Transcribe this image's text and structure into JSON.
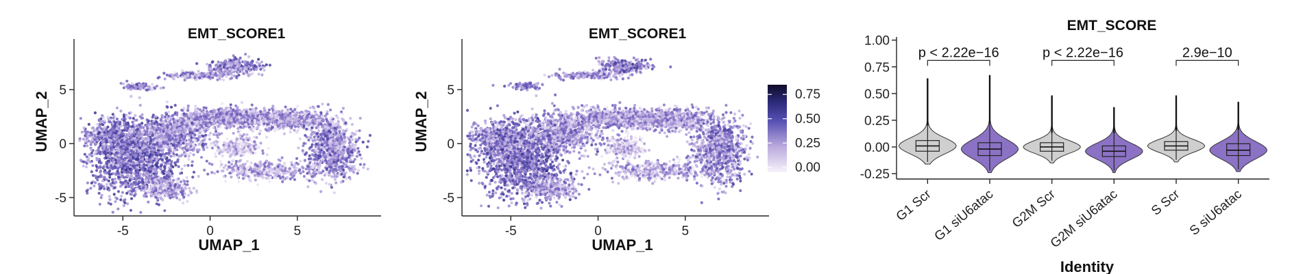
{
  "chart_data": [
    {
      "type": "scatter",
      "title": "EMT_SCORE1",
      "xlabel": "UMAP_1",
      "ylabel": "UMAP_2",
      "xticks": [
        -5,
        0,
        5
      ],
      "yticks": [
        -5,
        0,
        5
      ],
      "xlim": [
        -7.8,
        9.8
      ],
      "ylim": [
        -6.7,
        9.7
      ],
      "legend": "none"
    },
    {
      "type": "scatter",
      "title": "EMT_SCORE1",
      "xlabel": "UMAP_1",
      "ylabel": "UMAP_2",
      "xticks": [
        -5,
        0,
        5
      ],
      "yticks": [
        -5,
        0,
        5
      ],
      "xlim": [
        -7.8,
        9.8
      ],
      "ylim": [
        -6.7,
        9.7
      ],
      "colorbar": {
        "ticks": [
          "0.75",
          "0.50",
          "0.25",
          "0.00"
        ],
        "range": [
          -0.05,
          0.85
        ],
        "colors": [
          "#f6f2fb",
          "#b8a8dc",
          "#5852b4",
          "#2c2a7a",
          "#100c2a"
        ]
      }
    },
    {
      "type": "violin",
      "title": "EMT_SCORE",
      "xlabel": "Identity",
      "ylabel": "",
      "yticks": [
        "1.00",
        "0.75",
        "0.50",
        "0.25",
        "0.00",
        "-0.25"
      ],
      "ylim": [
        -0.3,
        1.03
      ],
      "categories": [
        "G1 Scr",
        "G1 siU6atac",
        "G2M Scr",
        "G2M siU6atac",
        "S Scr",
        "S siU6atac"
      ],
      "fill_colors": [
        "#cfcfcf",
        "#8b72c4",
        "#cfcfcf",
        "#8b72c4",
        "#cfcfcf",
        "#8b72c4"
      ],
      "medians": [
        0.01,
        -0.02,
        0.0,
        -0.04,
        0.01,
        -0.03
      ],
      "q1": [
        -0.04,
        -0.08,
        -0.04,
        -0.09,
        -0.03,
        -0.08
      ],
      "q3": [
        0.06,
        0.04,
        0.04,
        0.01,
        0.05,
        0.03
      ],
      "whisker_low": [
        -0.14,
        -0.22,
        -0.13,
        -0.22,
        -0.12,
        -0.21
      ],
      "whisker_high": [
        0.2,
        0.22,
        0.13,
        0.13,
        0.15,
        0.16
      ],
      "max": [
        0.64,
        0.67,
        0.48,
        0.37,
        0.48,
        0.42
      ],
      "comparisons": [
        {
          "groups": [
            "G1 Scr",
            "G1 siU6atac"
          ],
          "label": "p < 2.22e−16",
          "y": 0.81
        },
        {
          "groups": [
            "G2M Scr",
            "G2M siU6atac"
          ],
          "label": "p < 2.22e−16",
          "y": 0.81
        },
        {
          "groups": [
            "S Scr",
            "S siU6atac"
          ],
          "label": "2.9e−10",
          "y": 0.81
        }
      ]
    }
  ]
}
